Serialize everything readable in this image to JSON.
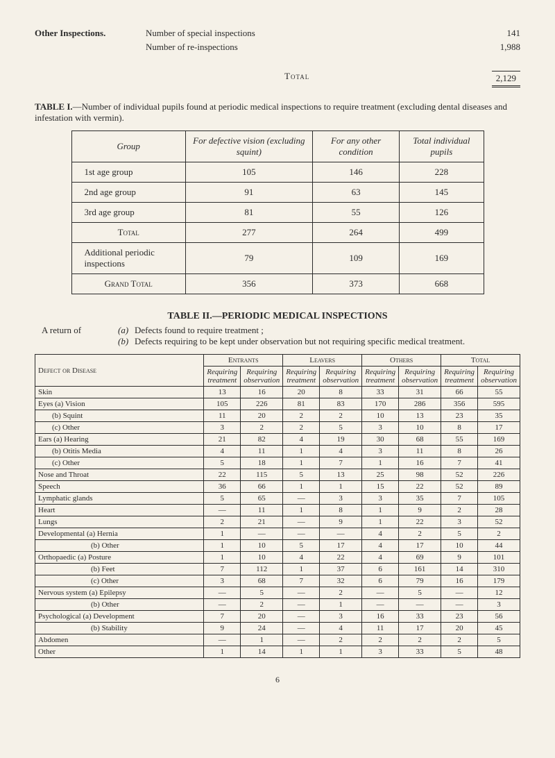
{
  "other_inspections": {
    "heading": "Other Inspections.",
    "lines": [
      {
        "label": "Number of special inspections",
        "value": "141"
      },
      {
        "label": "Number of re-inspections",
        "value": "1,988"
      }
    ],
    "total_label": "Total",
    "total_value": "2,129"
  },
  "table1": {
    "title_bold": "TABLE I.",
    "title_rest": "—Number of individual pupils found at periodic medical inspections to require treatment (excluding dental diseases and infestation with vermin).",
    "headers": [
      "Group",
      "For defective vision (excluding squint)",
      "For any other condition",
      "Total individual pupils"
    ],
    "rows": [
      {
        "group": "1st age group",
        "c1": "105",
        "c2": "146",
        "c3": "228"
      },
      {
        "group": "2nd age group",
        "c1": "91",
        "c2": "63",
        "c3": "145"
      },
      {
        "group": "3rd age group",
        "c1": "81",
        "c2": "55",
        "c3": "126"
      }
    ],
    "subtotal": {
      "label": "Total",
      "c1": "277",
      "c2": "264",
      "c3": "499"
    },
    "additional": {
      "label": "Additional periodic inspections",
      "c1": "79",
      "c2": "109",
      "c3": "169"
    },
    "grand": {
      "label": "Grand Total",
      "c1": "356",
      "c2": "373",
      "c3": "668"
    }
  },
  "table2": {
    "heading": "TABLE II.—PERIODIC MEDICAL INSPECTIONS",
    "return_lead": "A return of",
    "return_a_letter": "(a)",
    "return_a": "Defects found to require treatment ;",
    "return_b_letter": "(b)",
    "return_b": "Defects requiring to be kept under observation but not requiring specific medical treatment.",
    "top_headers": [
      "Entrants",
      "Leavers",
      "Others",
      "Total"
    ],
    "sub_headers": [
      "Requiring treatment",
      "Requiring observation"
    ],
    "disease_header": "Defect or Disease",
    "rows": [
      {
        "d": "Skin",
        "indent": 0,
        "v": [
          "13",
          "16",
          "20",
          "8",
          "33",
          "31",
          "66",
          "55"
        ]
      },
      {
        "d": "Eyes (a) Vision",
        "indent": 0,
        "v": [
          "105",
          "226",
          "81",
          "83",
          "170",
          "286",
          "356",
          "595"
        ]
      },
      {
        "d": "(b) Squint",
        "indent": 1,
        "v": [
          "11",
          "20",
          "2",
          "2",
          "10",
          "13",
          "23",
          "35"
        ]
      },
      {
        "d": "(c) Other",
        "indent": 1,
        "v": [
          "3",
          "2",
          "2",
          "5",
          "3",
          "10",
          "8",
          "17"
        ]
      },
      {
        "d": "Ears (a) Hearing",
        "indent": 0,
        "v": [
          "21",
          "82",
          "4",
          "19",
          "30",
          "68",
          "55",
          "169"
        ]
      },
      {
        "d": "(b) Otitis Media",
        "indent": 1,
        "v": [
          "4",
          "11",
          "1",
          "4",
          "3",
          "11",
          "8",
          "26"
        ]
      },
      {
        "d": "(c) Other",
        "indent": 1,
        "v": [
          "5",
          "18",
          "1",
          "7",
          "1",
          "16",
          "7",
          "41"
        ]
      },
      {
        "d": "Nose and Throat",
        "indent": 0,
        "v": [
          "22",
          "115",
          "5",
          "13",
          "25",
          "98",
          "52",
          "226"
        ]
      },
      {
        "d": "Speech",
        "indent": 0,
        "v": [
          "36",
          "66",
          "1",
          "1",
          "15",
          "22",
          "52",
          "89"
        ]
      },
      {
        "d": "Lymphatic glands",
        "indent": 0,
        "v": [
          "5",
          "65",
          "—",
          "3",
          "3",
          "35",
          "7",
          "105"
        ]
      },
      {
        "d": "Heart",
        "indent": 0,
        "v": [
          "—",
          "11",
          "1",
          "8",
          "1",
          "9",
          "2",
          "28"
        ]
      },
      {
        "d": "Lungs",
        "indent": 0,
        "v": [
          "2",
          "21",
          "—",
          "9",
          "1",
          "22",
          "3",
          "52"
        ]
      },
      {
        "d": "Developmental (a) Hernia",
        "indent": 0,
        "v": [
          "1",
          "—",
          "—",
          "—",
          "4",
          "2",
          "5",
          "2"
        ]
      },
      {
        "d": "(b) Other",
        "indent": 2,
        "v": [
          "1",
          "10",
          "5",
          "17",
          "4",
          "17",
          "10",
          "44"
        ]
      },
      {
        "d": "Orthopaedic   (a) Posture",
        "indent": 0,
        "v": [
          "1",
          "10",
          "4",
          "22",
          "4",
          "69",
          "9",
          "101"
        ]
      },
      {
        "d": "(b) Feet",
        "indent": 2,
        "v": [
          "7",
          "112",
          "1",
          "37",
          "6",
          "161",
          "14",
          "310"
        ]
      },
      {
        "d": "(c) Other",
        "indent": 2,
        "v": [
          "3",
          "68",
          "7",
          "32",
          "6",
          "79",
          "16",
          "179"
        ]
      },
      {
        "d": "Nervous system (a) Epilepsy",
        "indent": 0,
        "v": [
          "—",
          "5",
          "—",
          "2",
          "—",
          "5",
          "—",
          "12"
        ]
      },
      {
        "d": "(b) Other",
        "indent": 2,
        "v": [
          "—",
          "2",
          "—",
          "1",
          "—",
          "—",
          "—",
          "3"
        ]
      },
      {
        "d": "Psychological (a) Development",
        "indent": 0,
        "v": [
          "7",
          "20",
          "—",
          "3",
          "16",
          "33",
          "23",
          "56"
        ]
      },
      {
        "d": "(b) Stability",
        "indent": 2,
        "v": [
          "9",
          "24",
          "—",
          "4",
          "11",
          "17",
          "20",
          "45"
        ]
      },
      {
        "d": "Abdomen",
        "indent": 0,
        "v": [
          "—",
          "1",
          "—",
          "2",
          "2",
          "2",
          "2",
          "5"
        ]
      },
      {
        "d": "Other",
        "indent": 0,
        "v": [
          "1",
          "14",
          "1",
          "1",
          "3",
          "33",
          "5",
          "48"
        ]
      }
    ]
  },
  "page_number": "6"
}
